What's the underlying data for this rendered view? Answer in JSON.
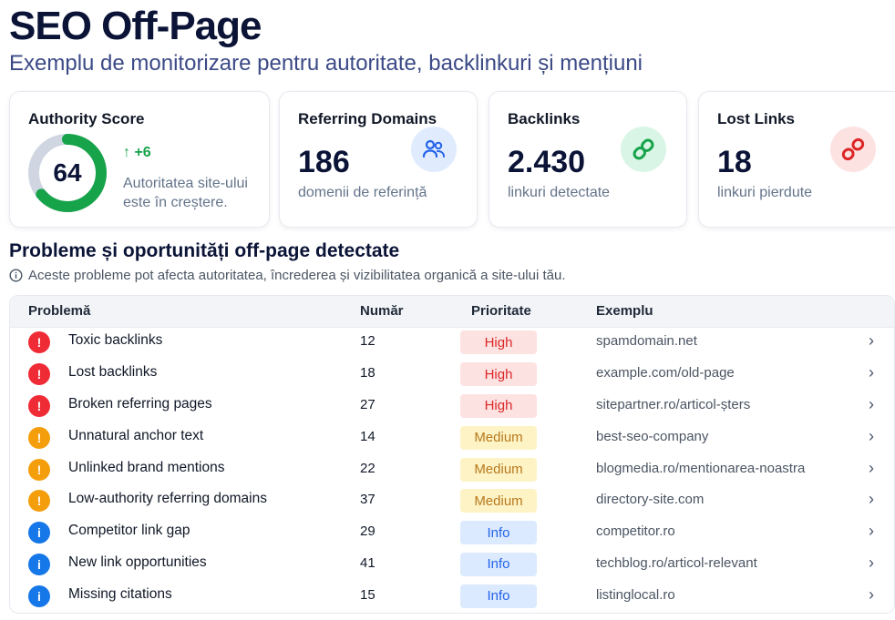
{
  "header": {
    "title": "SEO Off-Page",
    "subtitle": "Exemplu de monitorizare pentru autoritate, backlinkuri și mențiuni"
  },
  "cards": {
    "authority": {
      "label": "Authority Score",
      "value": "64",
      "gauge_fraction": 0.64,
      "delta": "↑ +6",
      "delta_text": "Autoritatea site-ului este în creștere."
    },
    "referring": {
      "label": "Referring Domains",
      "value": "186",
      "sub": "domenii de referință",
      "icon": "users-icon"
    },
    "backlinks": {
      "label": "Backlinks",
      "value": "2.430",
      "sub": "linkuri detectate",
      "icon": "link-icon"
    },
    "lost": {
      "label": "Lost Links",
      "value": "18",
      "sub": "linkuri pierdute",
      "icon": "broken-link-icon"
    }
  },
  "issues_section": {
    "title": "Probleme și oportunități off-page detectate",
    "notice": "Aceste probleme pot afecta autoritatea, încrederea și vizibilitatea organică a site-ului tău."
  },
  "table": {
    "columns": {
      "problem": "Problemă",
      "count": "Număr",
      "priority": "Prioritate",
      "example": "Exemplu"
    },
    "rows": [
      {
        "severity": "critical",
        "problem": "Toxic backlinks",
        "count": "12",
        "priority": "High",
        "example": "spamdomain.net"
      },
      {
        "severity": "critical",
        "problem": "Lost backlinks",
        "count": "18",
        "priority": "High",
        "example": "example.com/old-page"
      },
      {
        "severity": "critical",
        "problem": "Broken referring pages",
        "count": "27",
        "priority": "High",
        "example": "sitepartner.ro/articol-șters"
      },
      {
        "severity": "warning",
        "problem": "Unnatural anchor text",
        "count": "14",
        "priority": "Medium",
        "example": "best-seo-company"
      },
      {
        "severity": "warning",
        "problem": "Unlinked brand mentions",
        "count": "22",
        "priority": "Medium",
        "example": "blogmedia.ro/mentionarea-noastra"
      },
      {
        "severity": "warning",
        "problem": "Low-authority referring domains",
        "count": "37",
        "priority": "Medium",
        "example": "directory-site.com"
      },
      {
        "severity": "info",
        "problem": "Competitor link gap",
        "count": "29",
        "priority": "Info",
        "example": "competitor.ro"
      },
      {
        "severity": "info",
        "problem": "New link opportunities",
        "count": "41",
        "priority": "Info",
        "example": "techblog.ro/articol-relevant"
      },
      {
        "severity": "info",
        "problem": "Missing citations",
        "count": "15",
        "priority": "Info",
        "example": "listinglocal.ro"
      }
    ]
  },
  "colors": {
    "gauge": "#16a34a",
    "gauge_track": "#cfd6e2",
    "high": "#dc2626",
    "medium": "#b7791f",
    "info": "#2563eb"
  }
}
